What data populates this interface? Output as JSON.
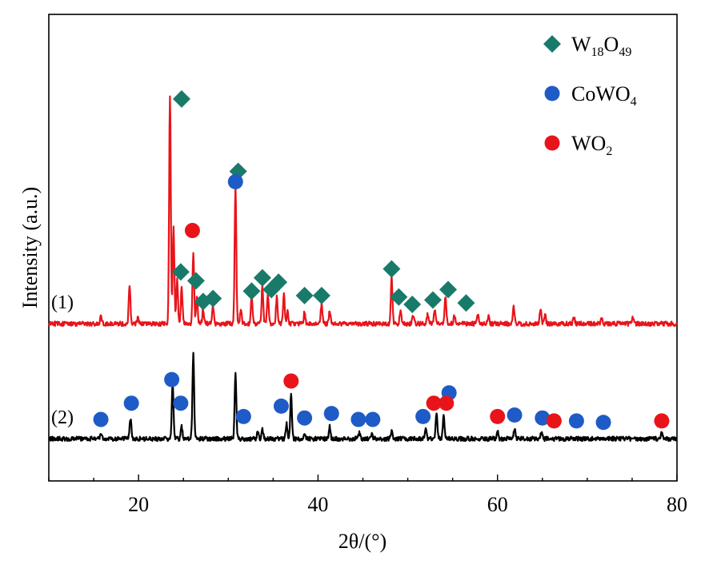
{
  "chart_data": {
    "type": "line",
    "title": "",
    "xlabel": "2θ/(°)",
    "ylabel": "Intensity (a.u.)",
    "xlim": [
      10,
      80
    ],
    "x_ticks": [
      20,
      40,
      60,
      80
    ],
    "y_ticks_labeled": false,
    "grid": false,
    "legend_position": "top-right",
    "legend": [
      {
        "key": "W18O49",
        "marker": "diamond",
        "color": "#1a7a6a",
        "label_main": "W",
        "sub1": "18",
        "mid": "O",
        "sub2": "49"
      },
      {
        "key": "CoWO4",
        "marker": "circle",
        "color": "#1e5bc6",
        "label_main": "CoWO",
        "sub1": "4",
        "mid": "",
        "sub2": ""
      },
      {
        "key": "WO2",
        "marker": "circle",
        "color": "#e8141a",
        "label_main": "WO",
        "sub1": "2",
        "mid": "",
        "sub2": ""
      }
    ],
    "series": [
      {
        "name": "(1)",
        "color": "#e8141a",
        "baseline": 0.0,
        "peaks": [
          [
            15.8,
            0.06
          ],
          [
            19.0,
            0.26
          ],
          [
            19.9,
            0.04
          ],
          [
            23.5,
            1.55
          ],
          [
            23.9,
            0.65
          ],
          [
            24.3,
            0.3
          ],
          [
            24.8,
            0.25
          ],
          [
            26.1,
            0.48
          ],
          [
            26.5,
            0.18
          ],
          [
            27.2,
            0.1
          ],
          [
            28.3,
            0.12
          ],
          [
            30.8,
            0.93
          ],
          [
            31.4,
            0.1
          ],
          [
            32.6,
            0.18
          ],
          [
            33.8,
            0.26
          ],
          [
            34.4,
            0.2
          ],
          [
            35.4,
            0.18
          ],
          [
            36.2,
            0.2
          ],
          [
            36.6,
            0.08
          ],
          [
            38.5,
            0.08
          ],
          [
            40.4,
            0.14
          ],
          [
            41.3,
            0.08
          ],
          [
            48.2,
            0.32
          ],
          [
            49.2,
            0.1
          ],
          [
            50.6,
            0.06
          ],
          [
            52.2,
            0.06
          ],
          [
            53.0,
            0.09
          ],
          [
            54.2,
            0.18
          ],
          [
            55.2,
            0.06
          ],
          [
            57.8,
            0.06
          ],
          [
            59.0,
            0.05
          ],
          [
            61.8,
            0.12
          ],
          [
            64.8,
            0.1
          ],
          [
            65.3,
            0.06
          ],
          [
            68.5,
            0.05
          ],
          [
            71.6,
            0.04
          ],
          [
            75.1,
            0.05
          ]
        ]
      },
      {
        "name": "(2)",
        "color": "#000000",
        "baseline": 0.0,
        "peaks": [
          [
            15.8,
            0.04
          ],
          [
            19.1,
            0.14
          ],
          [
            23.8,
            0.38
          ],
          [
            24.8,
            0.08
          ],
          [
            26.1,
            0.58
          ],
          [
            30.8,
            0.44
          ],
          [
            33.3,
            0.05
          ],
          [
            33.8,
            0.06
          ],
          [
            36.5,
            0.1
          ],
          [
            37.0,
            0.3
          ],
          [
            38.5,
            0.04
          ],
          [
            41.3,
            0.08
          ],
          [
            44.6,
            0.04
          ],
          [
            46.0,
            0.03
          ],
          [
            48.2,
            0.06
          ],
          [
            52.0,
            0.06
          ],
          [
            53.2,
            0.18
          ],
          [
            54.0,
            0.16
          ],
          [
            60.0,
            0.06
          ],
          [
            61.9,
            0.07
          ],
          [
            64.9,
            0.05
          ],
          [
            78.3,
            0.04
          ]
        ]
      }
    ],
    "phase_markers": [
      {
        "series": "(1)",
        "phase": "W18O49",
        "x": 24.8,
        "y": 1.46
      },
      {
        "series": "(1)",
        "phase": "W18O49",
        "x": 31.1,
        "y": 0.97
      },
      {
        "series": "(1)",
        "phase": "CoWO4",
        "x": 30.8,
        "y": 0.9
      },
      {
        "series": "(1)",
        "phase": "WO2",
        "x": 26.0,
        "y": 0.57
      },
      {
        "series": "(1)",
        "phase": "W18O49",
        "x": 24.7,
        "y": 0.29
      },
      {
        "series": "(1)",
        "phase": "W18O49",
        "x": 26.4,
        "y": 0.23
      },
      {
        "series": "(1)",
        "phase": "W18O49",
        "x": 27.2,
        "y": 0.09
      },
      {
        "series": "(1)",
        "phase": "W18O49",
        "x": 28.3,
        "y": 0.11
      },
      {
        "series": "(1)",
        "phase": "W18O49",
        "x": 32.6,
        "y": 0.16
      },
      {
        "series": "(1)",
        "phase": "W18O49",
        "x": 33.8,
        "y": 0.25
      },
      {
        "series": "(1)",
        "phase": "W18O49",
        "x": 34.8,
        "y": 0.17
      },
      {
        "series": "(1)",
        "phase": "W18O49",
        "x": 35.6,
        "y": 0.22
      },
      {
        "series": "(1)",
        "phase": "W18O49",
        "x": 38.5,
        "y": 0.13
      },
      {
        "series": "(1)",
        "phase": "W18O49",
        "x": 40.4,
        "y": 0.13
      },
      {
        "series": "(1)",
        "phase": "W18O49",
        "x": 48.2,
        "y": 0.31
      },
      {
        "series": "(1)",
        "phase": "W18O49",
        "x": 49.0,
        "y": 0.12
      },
      {
        "series": "(1)",
        "phase": "W18O49",
        "x": 50.5,
        "y": 0.07
      },
      {
        "series": "(1)",
        "phase": "W18O49",
        "x": 52.8,
        "y": 0.1
      },
      {
        "series": "(1)",
        "phase": "W18O49",
        "x": 54.5,
        "y": 0.17
      },
      {
        "series": "(1)",
        "phase": "W18O49",
        "x": 56.5,
        "y": 0.08
      },
      {
        "series": "(2)",
        "phase": "CoWO4",
        "x": 15.8,
        "y": 0.07
      },
      {
        "series": "(2)",
        "phase": "CoWO4",
        "x": 19.2,
        "y": 0.18
      },
      {
        "series": "(2)",
        "phase": "CoWO4",
        "x": 23.7,
        "y": 0.34
      },
      {
        "series": "(2)",
        "phase": "CoWO4",
        "x": 24.7,
        "y": 0.18
      },
      {
        "series": "(2)",
        "phase": "CoWO4",
        "x": 31.7,
        "y": 0.09
      },
      {
        "series": "(2)",
        "phase": "CoWO4",
        "x": 35.9,
        "y": 0.16
      },
      {
        "series": "(2)",
        "phase": "CoWO4",
        "x": 38.5,
        "y": 0.08
      },
      {
        "series": "(2)",
        "phase": "CoWO4",
        "x": 41.5,
        "y": 0.11
      },
      {
        "series": "(2)",
        "phase": "CoWO4",
        "x": 44.5,
        "y": 0.07
      },
      {
        "series": "(2)",
        "phase": "CoWO4",
        "x": 46.1,
        "y": 0.07
      },
      {
        "series": "(2)",
        "phase": "CoWO4",
        "x": 51.7,
        "y": 0.09
      },
      {
        "series": "(2)",
        "phase": "CoWO4",
        "x": 54.6,
        "y": 0.25
      },
      {
        "series": "(2)",
        "phase": "CoWO4",
        "x": 61.9,
        "y": 0.1
      },
      {
        "series": "(2)",
        "phase": "CoWO4",
        "x": 65.0,
        "y": 0.08
      },
      {
        "series": "(2)",
        "phase": "CoWO4",
        "x": 68.8,
        "y": 0.06
      },
      {
        "series": "(2)",
        "phase": "CoWO4",
        "x": 71.8,
        "y": 0.05
      },
      {
        "series": "(2)",
        "phase": "WO2",
        "x": 37.0,
        "y": 0.33
      },
      {
        "series": "(2)",
        "phase": "WO2",
        "x": 52.9,
        "y": 0.18
      },
      {
        "series": "(2)",
        "phase": "WO2",
        "x": 54.3,
        "y": 0.18
      },
      {
        "series": "(2)",
        "phase": "WO2",
        "x": 60.0,
        "y": 0.09
      },
      {
        "series": "(2)",
        "phase": "WO2",
        "x": 66.3,
        "y": 0.06
      },
      {
        "series": "(2)",
        "phase": "WO2",
        "x": 78.3,
        "y": 0.06
      }
    ]
  }
}
